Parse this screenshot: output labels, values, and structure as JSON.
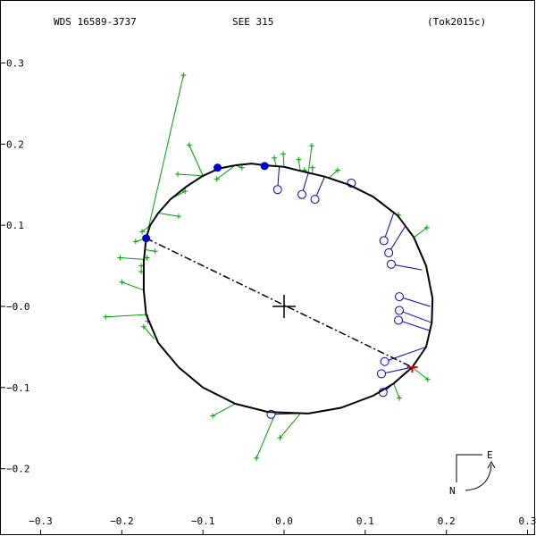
{
  "header": {
    "left": "WDS 16589-3737",
    "center": "SEE 315",
    "right": "(Tok2015c)"
  },
  "compass": {
    "east": "E",
    "north": "N"
  },
  "colors": {
    "frame": "#000000",
    "orbit": "#000000",
    "green_obs": "#00a000",
    "blue_obs": "#0000cc",
    "periastron_marker": "#cc0000"
  },
  "chart_data": {
    "type": "scatter",
    "title": "",
    "xlabel": "",
    "ylabel": "",
    "xlim": [
      -0.3,
      0.3
    ],
    "ylim": [
      -0.25,
      0.3
    ],
    "x_ticks": [
      -0.3,
      -0.2,
      -0.1,
      0.0,
      0.1,
      0.2,
      0.3
    ],
    "x_tick_labels": [
      "−0.3",
      "−0.2",
      "−0.1",
      "0.0",
      "0.1",
      "0.2",
      "0.3"
    ],
    "y_ticks": [
      0.3,
      0.2,
      0.1,
      0.0,
      -0.1,
      -0.2
    ],
    "y_tick_labels": [
      "0.3",
      "0.2",
      "0.1",
      "−0.0",
      "−0.1",
      "−0.2"
    ],
    "grid": false,
    "orbit": [
      [
        -0.17,
        0.084
      ],
      [
        -0.165,
        0.1
      ],
      [
        -0.155,
        0.115
      ],
      [
        -0.14,
        0.132
      ],
      [
        -0.12,
        0.148
      ],
      [
        -0.1,
        0.161
      ],
      [
        -0.08,
        0.17
      ],
      [
        -0.06,
        0.174
      ],
      [
        -0.04,
        0.176
      ],
      [
        -0.024,
        0.174
      ],
      [
        0.0,
        0.172
      ],
      [
        0.02,
        0.167
      ],
      [
        0.05,
        0.16
      ],
      [
        0.08,
        0.15
      ],
      [
        0.11,
        0.135
      ],
      [
        0.14,
        0.112
      ],
      [
        0.16,
        0.085
      ],
      [
        0.175,
        0.05
      ],
      [
        0.183,
        0.01
      ],
      [
        0.182,
        -0.02
      ],
      [
        0.175,
        -0.05
      ],
      [
        0.158,
        -0.075
      ],
      [
        0.135,
        -0.095
      ],
      [
        0.11,
        -0.11
      ],
      [
        0.07,
        -0.125
      ],
      [
        0.03,
        -0.132
      ],
      [
        -0.02,
        -0.13
      ],
      [
        -0.06,
        -0.12
      ],
      [
        -0.1,
        -0.1
      ],
      [
        -0.13,
        -0.075
      ],
      [
        -0.155,
        -0.045
      ],
      [
        -0.17,
        -0.01
      ],
      [
        -0.173,
        0.02
      ],
      [
        -0.173,
        0.055
      ],
      [
        -0.17,
        0.084
      ]
    ],
    "primary": [
      0.0,
      0.0
    ],
    "line_of_apsides": [
      [
        -0.17,
        0.084
      ],
      [
        0.158,
        -0.075
      ]
    ],
    "periastron": [
      0.158,
      -0.075
    ],
    "filled_points": [
      [
        -0.17,
        0.084
      ],
      [
        -0.082,
        0.171
      ],
      [
        -0.024,
        0.173
      ]
    ],
    "green_obs": [
      [
        [
          -0.124,
          0.285
        ],
        [
          -0.17,
          0.084
        ]
      ],
      [
        [
          -0.117,
          0.199
        ],
        [
          -0.1,
          0.161
        ]
      ],
      [
        [
          -0.131,
          0.163
        ],
        [
          -0.1,
          0.161
        ]
      ],
      [
        [
          -0.122,
          0.142
        ],
        [
          -0.14,
          0.132
        ]
      ],
      [
        [
          -0.13,
          0.111
        ],
        [
          -0.155,
          0.115
        ]
      ],
      [
        [
          -0.175,
          0.092
        ],
        [
          -0.165,
          0.1
        ]
      ],
      [
        [
          -0.183,
          0.08
        ],
        [
          -0.17,
          0.084
        ]
      ],
      [
        [
          -0.159,
          0.068
        ],
        [
          -0.172,
          0.07
        ]
      ],
      [
        [
          -0.169,
          0.06
        ],
        [
          -0.173,
          0.06
        ]
      ],
      [
        [
          -0.202,
          0.06
        ],
        [
          -0.173,
          0.058
        ]
      ],
      [
        [
          -0.176,
          0.05
        ],
        [
          -0.173,
          0.05
        ]
      ],
      [
        [
          -0.176,
          0.043
        ],
        [
          -0.173,
          0.043
        ]
      ],
      [
        [
          -0.2,
          0.03
        ],
        [
          -0.173,
          0.02
        ]
      ],
      [
        [
          -0.22,
          -0.013
        ],
        [
          -0.17,
          -0.01
        ]
      ],
      [
        [
          -0.168,
          -0.018
        ],
        [
          -0.168,
          -0.01
        ]
      ],
      [
        [
          -0.173,
          -0.025
        ],
        [
          -0.16,
          -0.04
        ]
      ],
      [
        [
          -0.083,
          0.157
        ],
        [
          -0.06,
          0.174
        ]
      ],
      [
        [
          -0.052,
          0.171
        ],
        [
          -0.06,
          0.174
        ]
      ],
      [
        [
          -0.001,
          0.188
        ],
        [
          0.0,
          0.172
        ]
      ],
      [
        [
          -0.012,
          0.183
        ],
        [
          -0.01,
          0.173
        ]
      ],
      [
        [
          0.018,
          0.181
        ],
        [
          0.02,
          0.167
        ]
      ],
      [
        [
          0.034,
          0.198
        ],
        [
          0.03,
          0.165
        ]
      ],
      [
        [
          0.025,
          0.168
        ],
        [
          0.03,
          0.165
        ]
      ],
      [
        [
          0.035,
          0.171
        ],
        [
          0.035,
          0.164
        ]
      ],
      [
        [
          0.066,
          0.168
        ],
        [
          0.055,
          0.158
        ]
      ],
      [
        [
          0.141,
          0.113
        ],
        [
          0.14,
          0.112
        ]
      ],
      [
        [
          0.176,
          0.097
        ],
        [
          0.16,
          0.085
        ]
      ],
      [
        [
          0.177,
          -0.09
        ],
        [
          0.158,
          -0.075
        ]
      ],
      [
        [
          0.142,
          -0.113
        ],
        [
          0.135,
          -0.095
        ]
      ],
      [
        [
          -0.088,
          -0.135
        ],
        [
          -0.06,
          -0.12
        ]
      ],
      [
        [
          -0.034,
          -0.187
        ],
        [
          -0.01,
          -0.13
        ]
      ],
      [
        [
          -0.005,
          -0.162
        ],
        [
          0.02,
          -0.132
        ]
      ]
    ],
    "blue_obs": [
      [
        [
          -0.008,
          0.144
        ],
        [
          -0.006,
          0.172
        ]
      ],
      [
        [
          0.022,
          0.138
        ],
        [
          0.03,
          0.165
        ]
      ],
      [
        [
          0.038,
          0.132
        ],
        [
          0.05,
          0.16
        ]
      ],
      [
        [
          0.083,
          0.152
        ],
        [
          0.08,
          0.15
        ]
      ],
      [
        [
          0.123,
          0.081
        ],
        [
          0.135,
          0.115
        ]
      ],
      [
        [
          0.129,
          0.066
        ],
        [
          0.15,
          0.1
        ]
      ],
      [
        [
          0.132,
          0.052
        ],
        [
          0.17,
          0.045
        ]
      ],
      [
        [
          0.142,
          0.012
        ],
        [
          0.18,
          0.0
        ]
      ],
      [
        [
          0.142,
          -0.005
        ],
        [
          0.182,
          -0.02
        ]
      ],
      [
        [
          0.141,
          -0.017
        ],
        [
          0.18,
          -0.03
        ]
      ],
      [
        [
          0.124,
          -0.068
        ],
        [
          0.175,
          -0.05
        ]
      ],
      [
        [
          0.12,
          -0.083
        ],
        [
          0.158,
          -0.075
        ]
      ],
      [
        [
          0.122,
          -0.106
        ],
        [
          0.135,
          -0.095
        ]
      ],
      [
        [
          -0.016,
          -0.133
        ],
        [
          0.02,
          -0.132
        ]
      ]
    ]
  }
}
